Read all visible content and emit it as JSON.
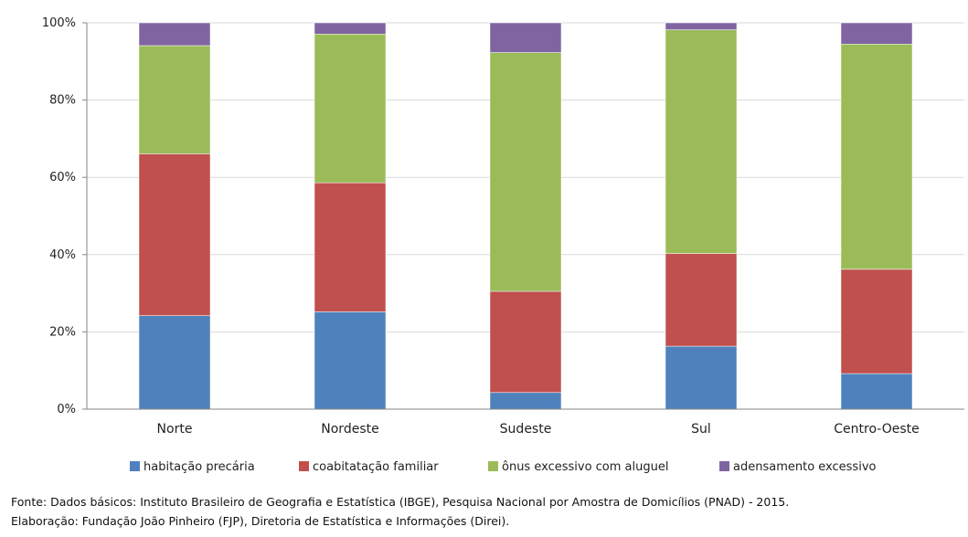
{
  "chart_data": {
    "type": "bar",
    "stacked": true,
    "percent_stacked": true,
    "categories": [
      "Norte",
      "Nordeste",
      "Sudeste",
      "Sul",
      "Centro-Oeste"
    ],
    "series": [
      {
        "name": "habitação precária",
        "color": "#4f81bd",
        "values": [
          24.2,
          25.2,
          4.3,
          16.3,
          9.2
        ]
      },
      {
        "name": "coabitatação familiar",
        "color": "#c0504d",
        "values": [
          41.9,
          33.4,
          26.2,
          24.0,
          27.0
        ]
      },
      {
        "name": "ônus excessivo com aluguel",
        "color": "#9bbb59",
        "values": [
          28.0,
          38.5,
          61.8,
          57.9,
          58.3
        ]
      },
      {
        "name": "adensamento excessivo",
        "color": "#8064a2",
        "values": [
          5.9,
          2.9,
          7.7,
          1.8,
          5.5
        ]
      }
    ],
    "yticks": [
      "0%",
      "20%",
      "40%",
      "60%",
      "80%",
      "100%"
    ],
    "ylim": [
      0,
      100
    ],
    "grid": true,
    "legend_position": "bottom"
  },
  "footnote": {
    "line1": "Fonte: Dados básicos: Instituto Brasileiro de Geografia e Estatística (IBGE), Pesquisa Nacional por Amostra de Domicílios (PNAD) - 2015.",
    "line2": "Elaboração: Fundação João Pinheiro (FJP), Diretoria de Estatística e Informações (Direi)."
  }
}
